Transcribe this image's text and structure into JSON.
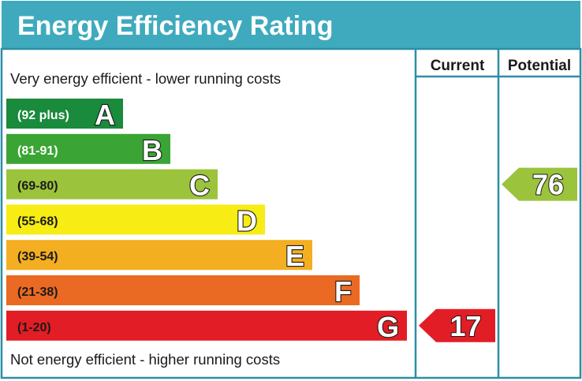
{
  "chart_data": {
    "type": "bar",
    "title": "Energy Efficiency Rating",
    "columns": [
      "Current",
      "Potential"
    ],
    "top_caption": "Very energy efficient - lower running costs",
    "bottom_caption": "Not energy efficient - higher running costs",
    "bands": [
      {
        "range": "(92 plus)",
        "letter": "A",
        "color": "#008054",
        "text_color": "#ffffff"
      },
      {
        "range": "(81-91)",
        "letter": "B",
        "color": "#19b459",
        "text_color": "#ffffff"
      },
      {
        "range": "(69-80)",
        "letter": "C",
        "color": "#8dce46",
        "text_color": "#1a1a1a"
      },
      {
        "range": "(55-68)",
        "letter": "D",
        "color": "#ffd500",
        "text_color": "#1a1a1a"
      },
      {
        "range": "(39-54)",
        "letter": "E",
        "color": "#fcaa65",
        "text_color": "#1a1a1a"
      },
      {
        "range": "(21-38)",
        "letter": "F",
        "color": "#ef8023",
        "text_color": "#1a1a1a"
      },
      {
        "range": "(1-20)",
        "letter": "G",
        "color": "#e9153b",
        "text_color": "#1a1a1a"
      }
    ],
    "current": {
      "value": 17,
      "band": "G"
    },
    "potential": {
      "value": 76,
      "band": "C"
    }
  },
  "colors": {
    "header_bg": "#3faabd",
    "frame": "#2c8ea6",
    "band_A": "#1a8a3c",
    "band_B": "#3aa534",
    "band_C": "#9bc43c",
    "band_D": "#f7ec14",
    "band_E": "#f4ae22",
    "band_F": "#ea6a23",
    "band_G": "#e31d25"
  }
}
